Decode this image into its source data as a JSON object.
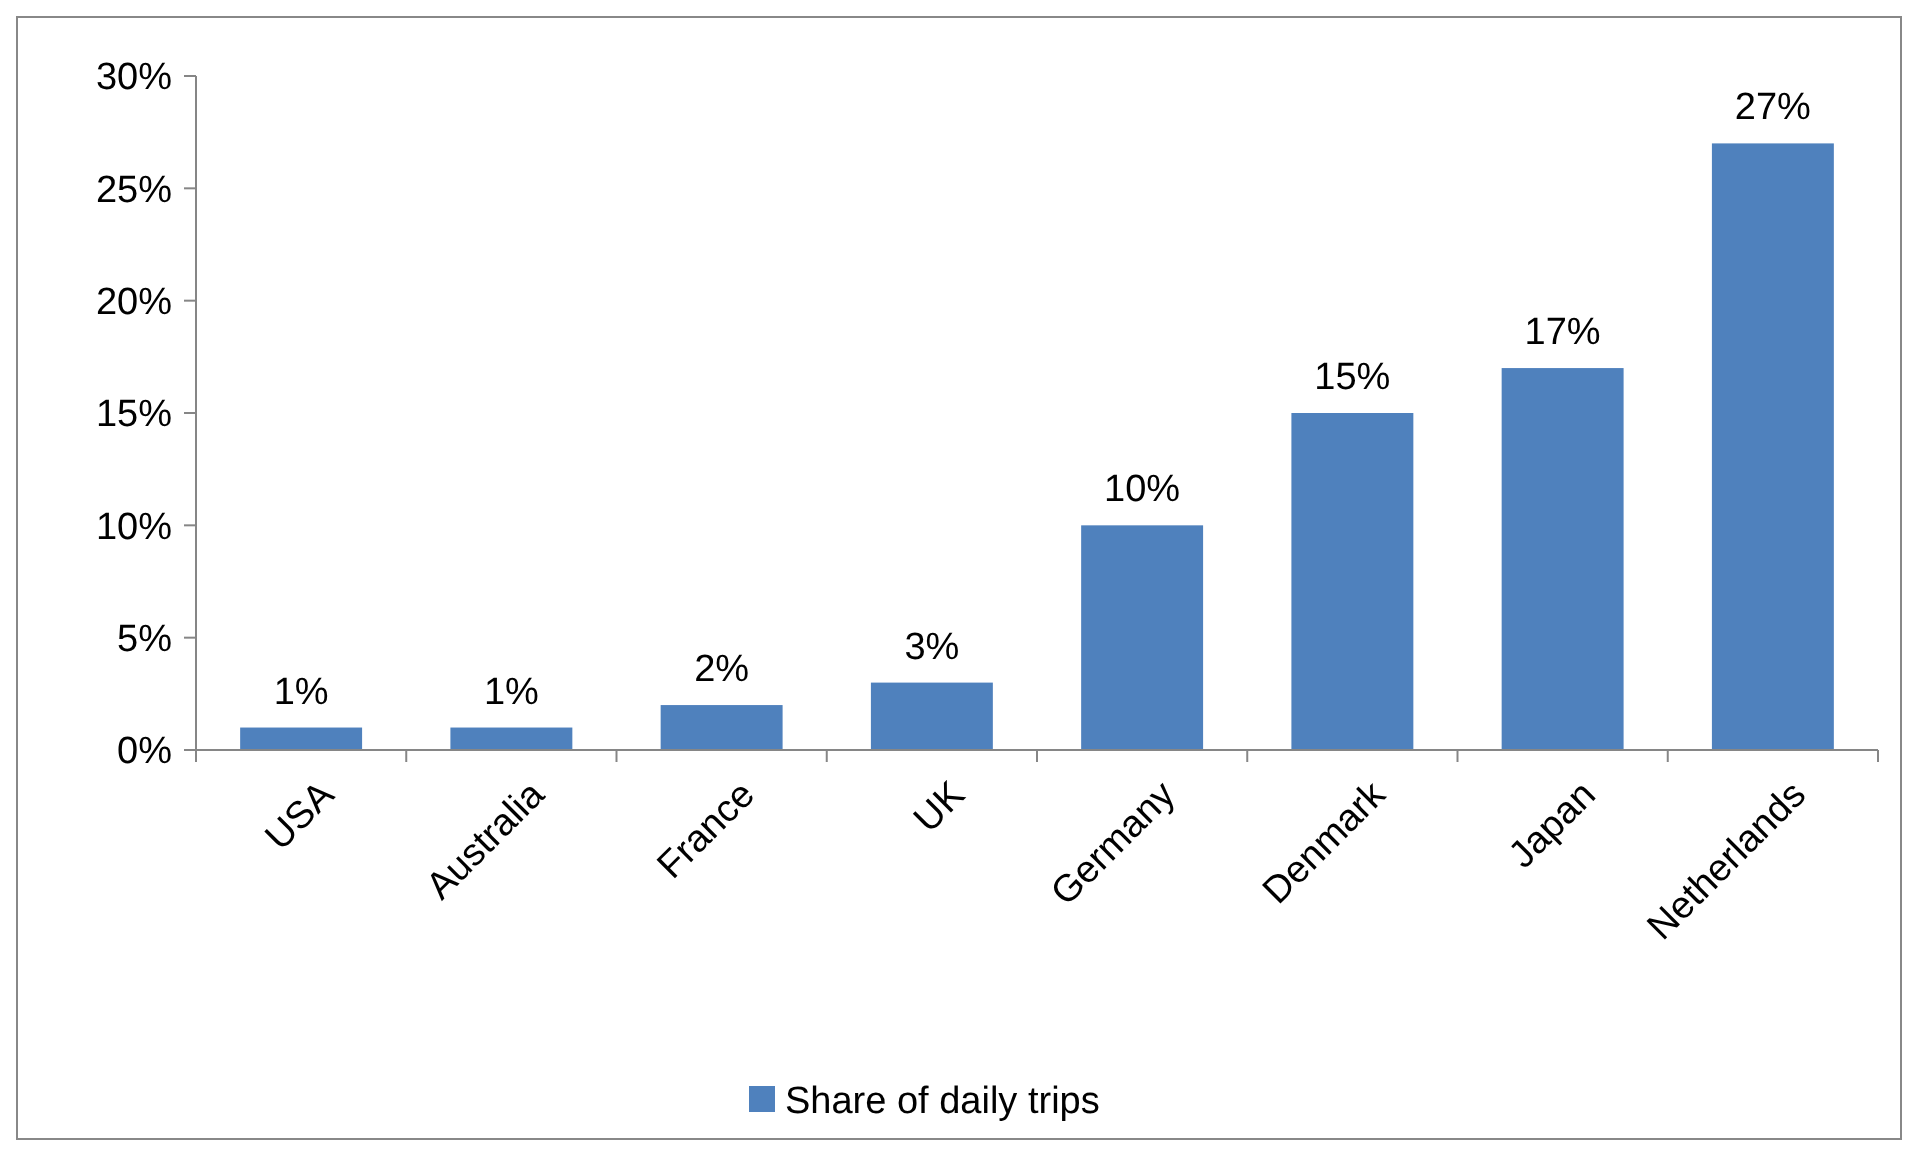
{
  "chart_data": {
    "type": "bar",
    "categories": [
      "USA",
      "Australia",
      "France",
      "UK",
      "Germany",
      "Denmark",
      "Japan",
      "Netherlands"
    ],
    "series": [
      {
        "name": "Share of daily trips",
        "color": "#4f81bd",
        "values": [
          1,
          1,
          2,
          3,
          10,
          15,
          17,
          27
        ],
        "value_labels": [
          "1%",
          "1%",
          "2%",
          "3%",
          "10%",
          "15%",
          "17%",
          "27%"
        ]
      }
    ],
    "ylim": [
      0,
      30
    ],
    "yticks": [
      {
        "value": 0,
        "label": "0%"
      },
      {
        "value": 5,
        "label": "5%"
      },
      {
        "value": 10,
        "label": "10%"
      },
      {
        "value": 15,
        "label": "15%"
      },
      {
        "value": 20,
        "label": "20%"
      },
      {
        "value": 25,
        "label": "25%"
      },
      {
        "value": 30,
        "label": "30%"
      }
    ],
    "grid": false,
    "legend": "bottom"
  }
}
